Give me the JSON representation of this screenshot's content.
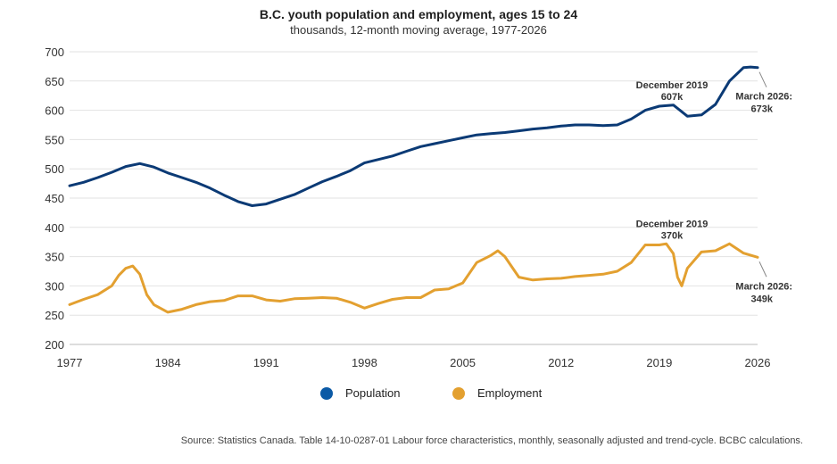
{
  "chart_data": {
    "type": "line",
    "title": "B.C. youth population and employment, ages 15 to 24",
    "subtitle": "thousands, 12-month moving average, 1977-2026",
    "xlabel": "",
    "ylabel": "",
    "ylim": [
      200,
      700
    ],
    "xlim": [
      1977,
      2026
    ],
    "yticks": [
      "700",
      "650",
      "600",
      "550",
      "500",
      "450",
      "400",
      "350",
      "300",
      "250",
      "200"
    ],
    "xticks": [
      "1977",
      "1984",
      "1991",
      "1998",
      "2005",
      "2012",
      "2019",
      "2026"
    ],
    "grid": "horizontal",
    "legend_position": "bottom",
    "series": [
      {
        "name": "Population",
        "color": "#0b3a75",
        "x": [
          1977,
          1978,
          1979,
          1980,
          1981,
          1982,
          1983,
          1984,
          1985,
          1986,
          1987,
          1988,
          1989,
          1990,
          1991,
          1992,
          1993,
          1994,
          1995,
          1996,
          1997,
          1998,
          1999,
          2000,
          2001,
          2002,
          2003,
          2004,
          2005,
          2006,
          2007,
          2008,
          2009,
          2010,
          2011,
          2012,
          2013,
          2014,
          2015,
          2016,
          2017,
          2018,
          2019,
          2020,
          2021,
          2022,
          2023,
          2024,
          2025,
          2025.5,
          2026
        ],
        "values": [
          471,
          477,
          485,
          494,
          504,
          509,
          503,
          493,
          485,
          477,
          467,
          455,
          444,
          437,
          440,
          448,
          456,
          467,
          478,
          487,
          497,
          510,
          516,
          522,
          530,
          538,
          543,
          548,
          553,
          558,
          560,
          562,
          565,
          568,
          570,
          573,
          575,
          575,
          574,
          575,
          585,
          600,
          607,
          609,
          590,
          592,
          610,
          650,
          673,
          674,
          673
        ]
      },
      {
        "name": "Employment",
        "color": "#e3a030",
        "x": [
          1977,
          1978,
          1979,
          1980,
          1980.5,
          1981,
          1981.5,
          1982,
          1982.5,
          1983,
          1984,
          1985,
          1986,
          1987,
          1988,
          1989,
          1990,
          1991,
          1992,
          1993,
          1994,
          1995,
          1996,
          1997,
          1998,
          1999,
          2000,
          2001,
          2002,
          2003,
          2004,
          2005,
          2006,
          2007,
          2007.5,
          2008,
          2009,
          2010,
          2011,
          2012,
          2013,
          2014,
          2015,
          2016,
          2017,
          2018,
          2019,
          2019.5,
          2020,
          2020.3,
          2020.6,
          2021,
          2022,
          2023,
          2024,
          2025,
          2026
        ],
        "values": [
          268,
          277,
          285,
          300,
          318,
          330,
          334,
          320,
          285,
          268,
          255,
          260,
          268,
          273,
          275,
          283,
          283,
          276,
          274,
          278,
          279,
          280,
          279,
          272,
          262,
          270,
          277,
          280,
          280,
          293,
          295,
          305,
          340,
          352,
          360,
          350,
          315,
          310,
          312,
          313,
          316,
          318,
          320,
          325,
          340,
          370,
          370,
          372,
          355,
          315,
          300,
          330,
          358,
          360,
          372,
          356,
          349
        ]
      }
    ],
    "annotations": [
      {
        "series": "Population",
        "x": 2019.9,
        "y": 607,
        "lines": [
          "December 2019",
          "607k"
        ],
        "position": "above"
      },
      {
        "series": "Population",
        "x": 2026,
        "y": 673,
        "lines": [
          "March 2026:",
          "673k"
        ],
        "position": "below"
      },
      {
        "series": "Employment",
        "x": 2019.9,
        "y": 370,
        "lines": [
          "December 2019",
          "370k"
        ],
        "position": "above"
      },
      {
        "series": "Employment",
        "x": 2026,
        "y": 349,
        "lines": [
          "March 2026:",
          "349k"
        ],
        "position": "below"
      }
    ]
  },
  "legend": {
    "population_label": "Population",
    "employment_label": "Employment"
  },
  "source": "Source: Statistics Canada. Table 14-10-0287-01 Labour force characteristics, monthly, seasonally adjusted and trend-cycle. BCBC calculations."
}
